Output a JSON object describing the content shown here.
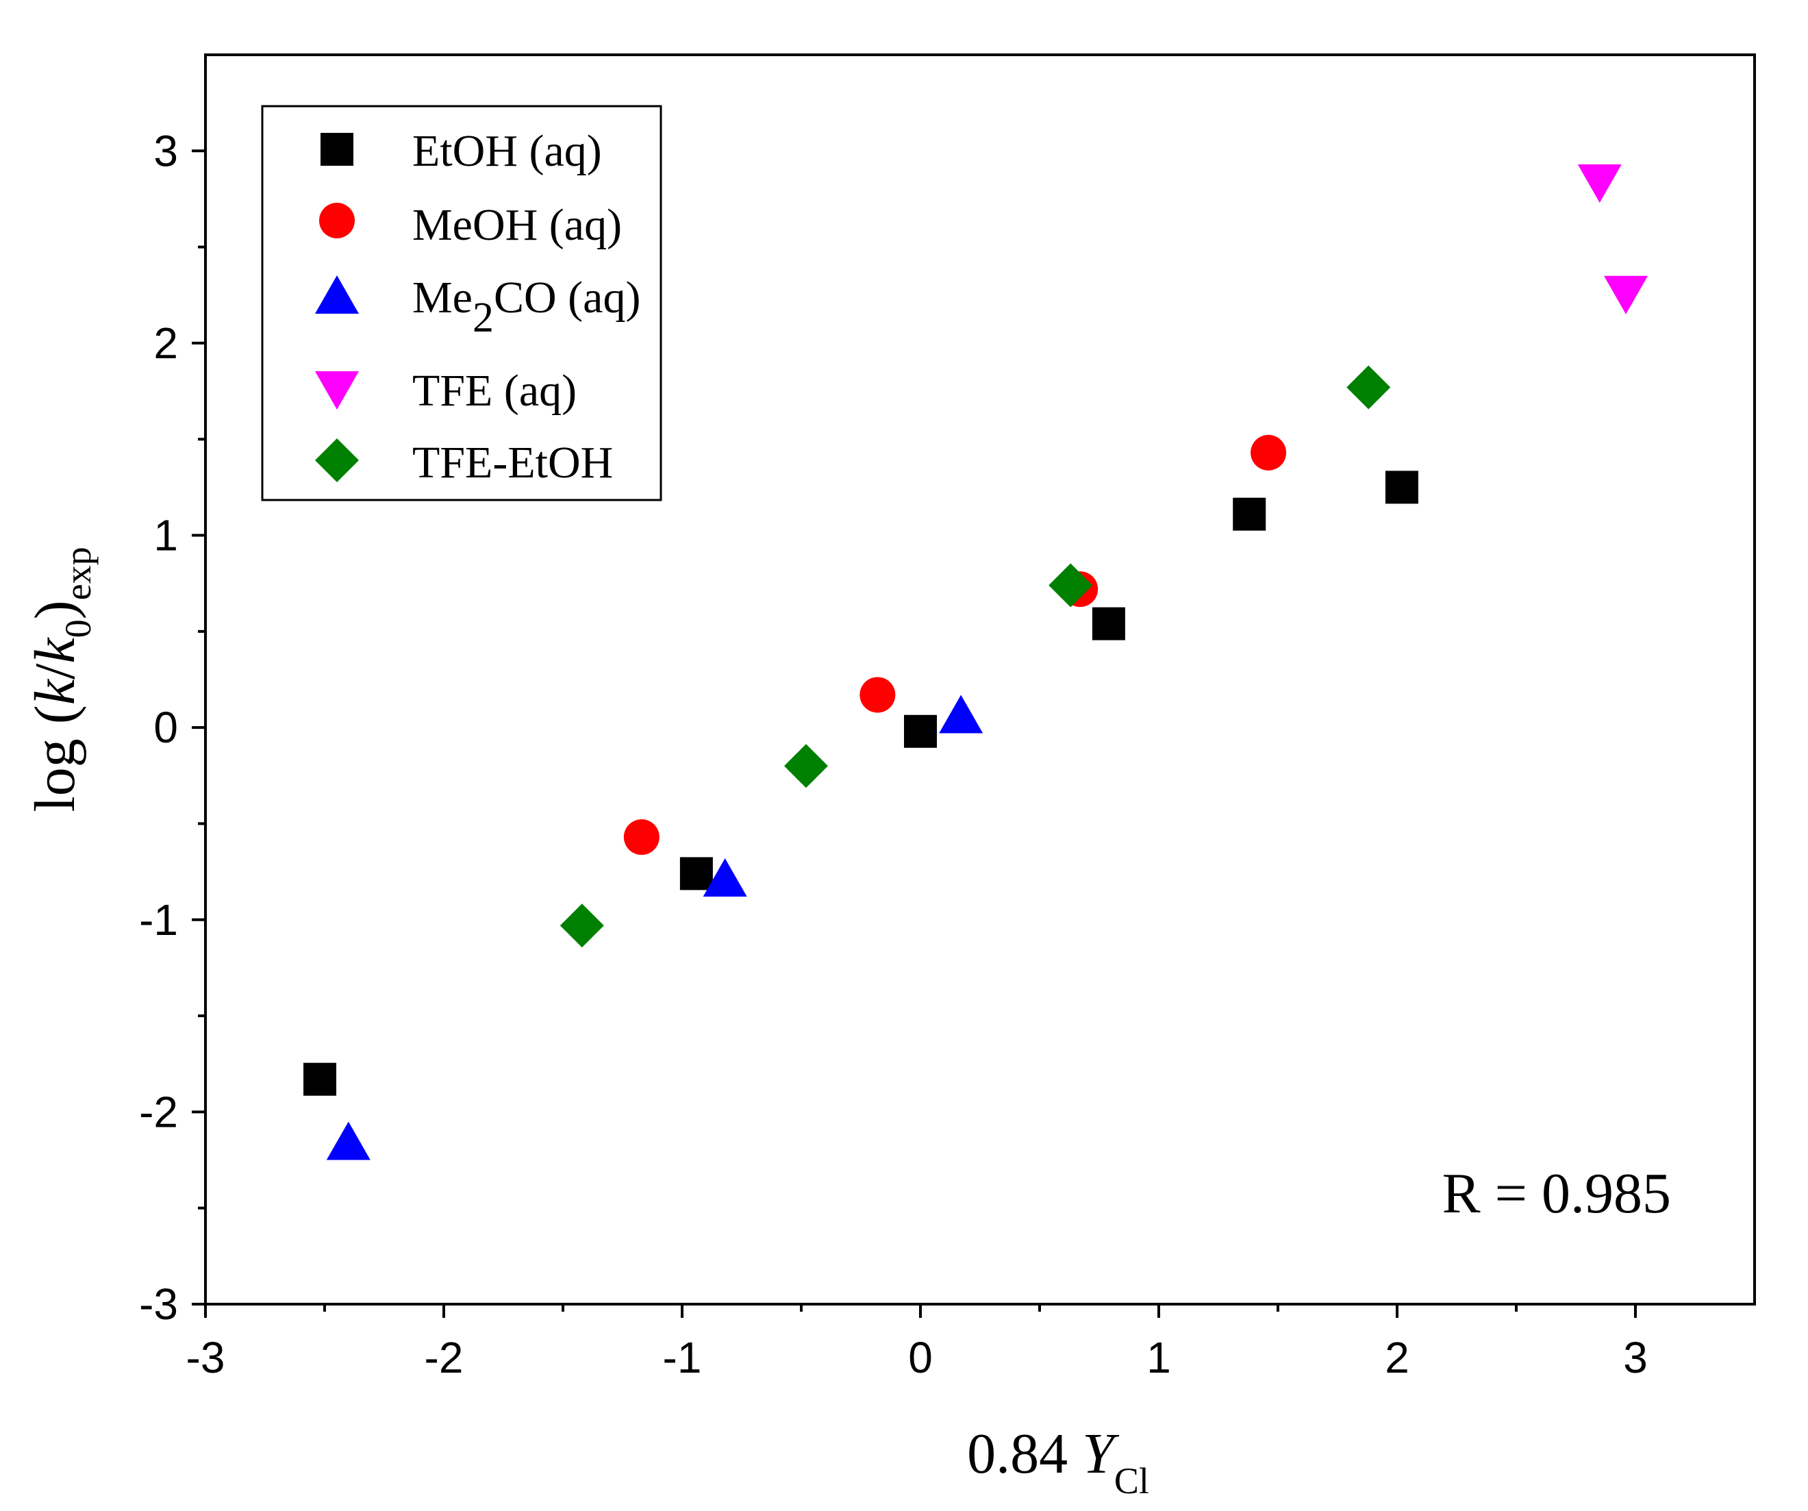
{
  "chart_data": {
    "type": "scatter",
    "title": "",
    "xlabel": {
      "prefix": "0.84 ",
      "var": "Y",
      "sub": "Cl"
    },
    "ylabel": {
      "prefix": "log (",
      "k1": "k",
      "slash": "/",
      "k2": "k",
      "sub0": "0",
      "close": ")",
      "sub": "exp"
    },
    "xlim": [
      -3,
      3.5
    ],
    "ylim": [
      -3,
      3.5
    ],
    "xticks": [
      -3,
      -2,
      -1,
      0,
      1,
      2,
      3
    ],
    "yticks": [
      -3,
      -2,
      -1,
      0,
      1,
      2,
      3
    ],
    "xtick_labels": [
      "-3",
      "-2",
      "-1",
      "0",
      "1",
      "2",
      "3"
    ],
    "ytick_labels": [
      "-3",
      "-2",
      "-1",
      "0",
      "1",
      "2",
      "3"
    ],
    "grid": false,
    "legend_position": "top-left",
    "annotation": "R = 0.985",
    "series": [
      {
        "name": "EtOH (aq)",
        "marker": "square",
        "color": "#000000",
        "points": [
          [
            -2.52,
            -1.83
          ],
          [
            -0.94,
            -0.76
          ],
          [
            0.0,
            -0.02
          ],
          [
            0.79,
            0.54
          ],
          [
            1.38,
            1.11
          ],
          [
            2.02,
            1.25
          ]
        ]
      },
      {
        "name": "MeOH (aq)",
        "marker": "circle",
        "color": "#ff0000",
        "points": [
          [
            -1.17,
            -0.57
          ],
          [
            -0.18,
            0.17
          ],
          [
            0.67,
            0.72
          ],
          [
            1.46,
            1.43
          ]
        ]
      },
      {
        "name": "Me2CO (aq)",
        "label_main": "Me",
        "label_sub": "2",
        "label_rest": "CO (aq)",
        "marker": "triangle-up",
        "color": "#0000ff",
        "points": [
          [
            -2.4,
            -2.15
          ],
          [
            -0.82,
            -0.78
          ],
          [
            0.17,
            0.07
          ]
        ]
      },
      {
        "name": "TFE (aq)",
        "marker": "triangle-down",
        "color": "#ff00ff",
        "points": [
          [
            2.85,
            2.83
          ],
          [
            2.96,
            2.25
          ]
        ]
      },
      {
        "name": "TFE-EtOH",
        "marker": "diamond",
        "color": "#008000",
        "points": [
          [
            -1.42,
            -1.03
          ],
          [
            -0.48,
            -0.2
          ],
          [
            0.63,
            0.74
          ],
          [
            1.88,
            1.77
          ]
        ]
      }
    ]
  }
}
